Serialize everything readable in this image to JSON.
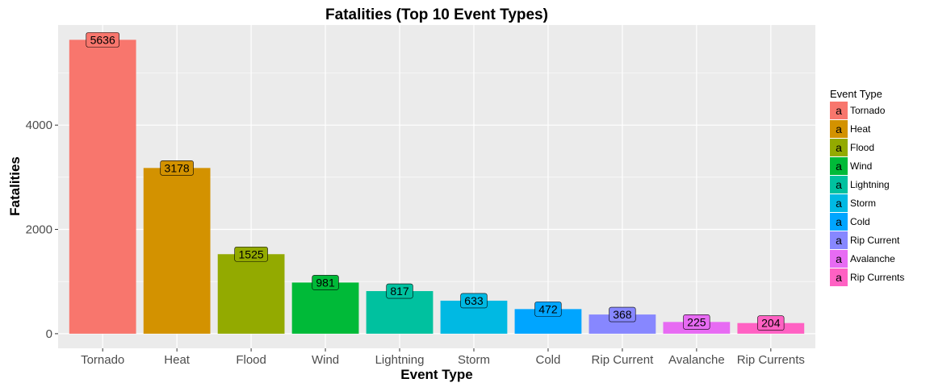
{
  "chart_data": {
    "type": "bar",
    "title": "Fatalities (Top 10 Event Types)",
    "xlabel": "Event Type",
    "ylabel": "Fatalities",
    "categories": [
      "Tornado",
      "Heat",
      "Flood",
      "Wind",
      "Lightning",
      "Storm",
      "Cold",
      "Rip Current",
      "Avalanche",
      "Rip Currents"
    ],
    "values": [
      5636,
      3178,
      1525,
      981,
      817,
      633,
      472,
      368,
      225,
      204
    ],
    "colors": [
      "#F8766D",
      "#D39200",
      "#93AA00",
      "#00BA38",
      "#00C19F",
      "#00B9E3",
      "#00A5FF",
      "#8787FF",
      "#E76BF3",
      "#FF61C3"
    ],
    "ylim": [
      -280,
      5920
    ],
    "yticks": [
      0,
      2000,
      4000
    ],
    "grid": true,
    "legend": {
      "title": "Event Type",
      "position": "right",
      "key_glyph": "a",
      "entries": [
        "Tornado",
        "Heat",
        "Flood",
        "Wind",
        "Lightning",
        "Storm",
        "Cold",
        "Rip Current",
        "Avalanche",
        "Rip Currents"
      ]
    }
  }
}
